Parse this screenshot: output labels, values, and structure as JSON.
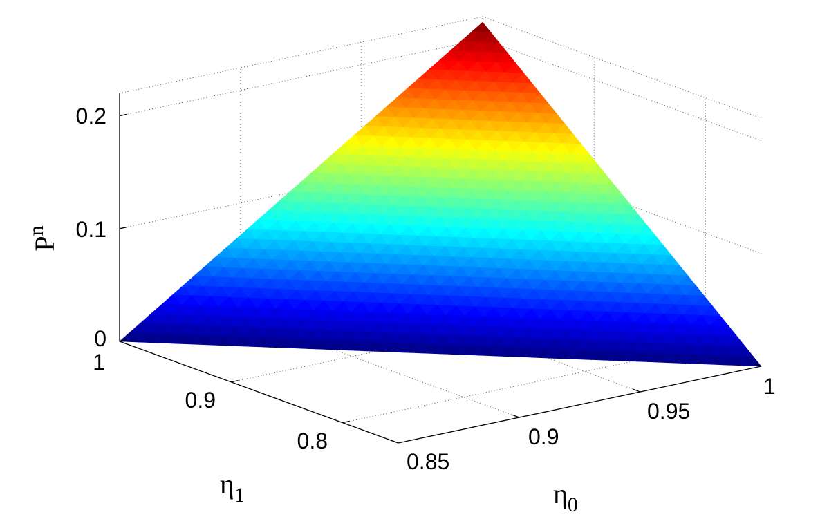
{
  "chart_data": {
    "type": "surface",
    "title": "",
    "xlabel": "η",
    "xlabel_sub": "0",
    "ylabel": "η",
    "ylabel_sub": "1",
    "zlabel": "P",
    "zlabel_sup": "n",
    "xlim": [
      0.85,
      1
    ],
    "ylim": [
      0.75,
      1
    ],
    "zlim": [
      0,
      0.22
    ],
    "x_ticks": [
      {
        "value": 0.85,
        "label": "0.85"
      },
      {
        "value": 0.9,
        "label": "0.9"
      },
      {
        "value": 0.95,
        "label": "0.95"
      },
      {
        "value": 1,
        "label": "1"
      }
    ],
    "y_ticks": [
      {
        "value": 0.8,
        "label": "0.8"
      },
      {
        "value": 0.9,
        "label": "0.9"
      },
      {
        "value": 1,
        "label": "1"
      }
    ],
    "z_ticks": [
      {
        "value": 0,
        "label": "0"
      },
      {
        "value": 0.1,
        "label": "0.1"
      },
      {
        "value": 0.2,
        "label": "0.2"
      }
    ],
    "grid": true,
    "colormap": "jet",
    "surface": {
      "region": "triangle",
      "vertices": [
        {
          "x": 0.85,
          "y": 1,
          "z": 0
        },
        {
          "x": 1,
          "y": 0.75,
          "z": 0
        },
        {
          "x": 1,
          "y": 1,
          "z": 0.215
        }
      ]
    }
  }
}
